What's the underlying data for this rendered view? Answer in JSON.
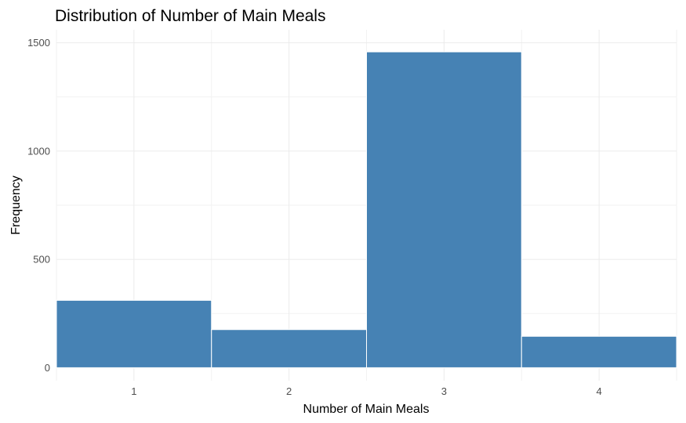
{
  "chart_data": {
    "type": "bar",
    "title": "Distribution of Number of Main Meals",
    "xlabel": "Number of Main Meals",
    "ylabel": "Frequency",
    "categories": [
      "1",
      "2",
      "3",
      "4"
    ],
    "values": [
      311,
      176,
      1458,
      145
    ],
    "ylim": [
      -60,
      1560
    ],
    "yticks": [
      0,
      500,
      1000,
      1500
    ],
    "xlim": [
      0.5,
      4.5
    ],
    "xticks": [
      1,
      2,
      3,
      4
    ],
    "bar_color": "#4682B4",
    "grid": true,
    "legend": "none"
  }
}
